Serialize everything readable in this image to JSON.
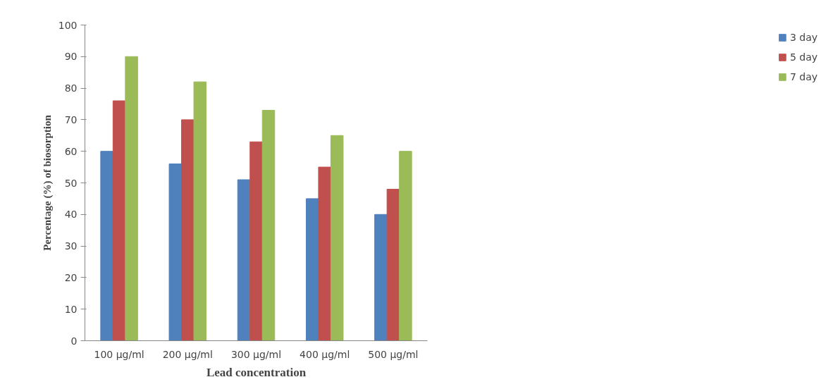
{
  "chart_data": {
    "type": "bar",
    "xlabel": "Lead concentration",
    "ylabel": "Percentage (%) of biosorption",
    "categories": [
      "100 µg/ml",
      "200 µg/ml",
      "300 µg/ml",
      "400 µg/ml",
      "500 µg/ml"
    ],
    "series": [
      {
        "name": "3 day",
        "color": "#4f81bd",
        "values": [
          60,
          56,
          51,
          45,
          40
        ]
      },
      {
        "name": "5 day",
        "color": "#c0504d",
        "values": [
          76,
          70,
          63,
          55,
          48
        ]
      },
      {
        "name": "7 day",
        "color": "#9bbb59",
        "values": [
          90,
          82,
          73,
          65,
          60
        ]
      }
    ],
    "ylim": [
      0,
      100
    ],
    "yticks": [
      0,
      10,
      20,
      30,
      40,
      50,
      60,
      70,
      80,
      90,
      100
    ],
    "grid": false,
    "legend": "right"
  }
}
